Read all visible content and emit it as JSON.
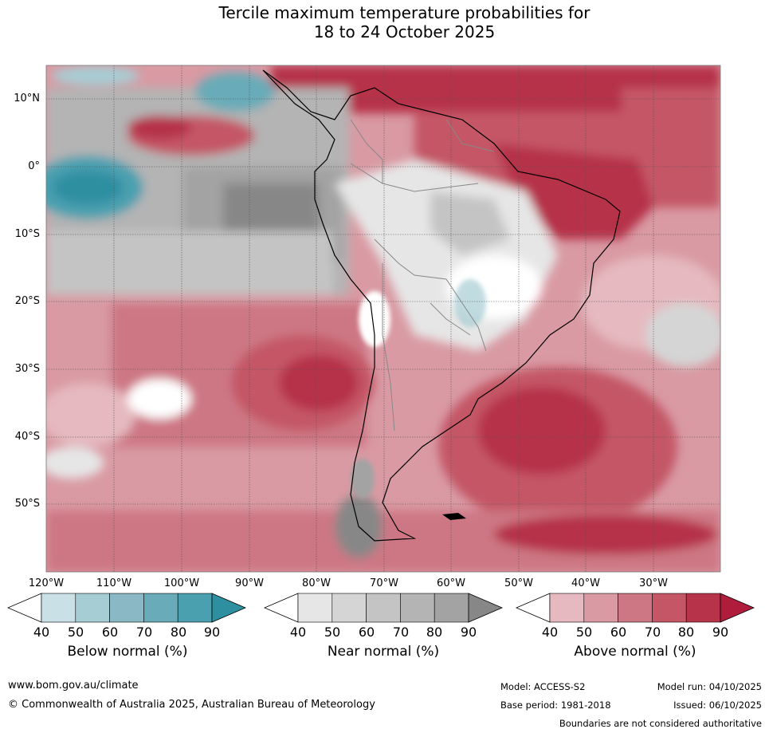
{
  "title": {
    "line1": "Tercile maximum temperature probabilities for",
    "line2": "18 to 24 October 2025"
  },
  "map": {
    "latitude_labels": [
      "10°N",
      "0°",
      "10°S",
      "20°S",
      "30°S",
      "40°S",
      "50°S"
    ],
    "longitude_labels": [
      "120°W",
      "110°W",
      "100°W",
      "90°W",
      "80°W",
      "70°W",
      "60°W",
      "50°W",
      "40°W",
      "30°W"
    ]
  },
  "legends": [
    {
      "title": "Below normal (%)",
      "ticks": [
        "40",
        "50",
        "60",
        "70",
        "80",
        "90"
      ],
      "colors": [
        "#ffffff",
        "#c9e1e6",
        "#a7cdd4",
        "#8ab8c4",
        "#69abb8",
        "#4ba0b0",
        "#2e8fa1"
      ]
    },
    {
      "title": "Near normal (%)",
      "ticks": [
        "40",
        "50",
        "60",
        "70",
        "80",
        "90"
      ],
      "colors": [
        "#ffffff",
        "#e6e6e6",
        "#d5d5d5",
        "#c4c4c4",
        "#b4b4b4",
        "#a3a3a3",
        "#878787"
      ]
    },
    {
      "title": "Above normal (%)",
      "ticks": [
        "40",
        "50",
        "60",
        "70",
        "80",
        "90"
      ],
      "colors": [
        "#ffffff",
        "#e5b9bf",
        "#d99aa3",
        "#cd7784",
        "#c45666",
        "#b6334a",
        "#b01c3c"
      ]
    }
  ],
  "footer": {
    "website": "www.bom.gov.au/climate",
    "copyright": "© Commonwealth of Australia 2025, Australian Bureau of Meteorology",
    "model": "Model: ACCESS-S2",
    "model_run": "Model run: 04/10/2025",
    "base_period": "Base period: 1981-2018",
    "issued": "Issued: 06/10/2025",
    "disclaimer": "Boundaries are not considered authoritative"
  }
}
